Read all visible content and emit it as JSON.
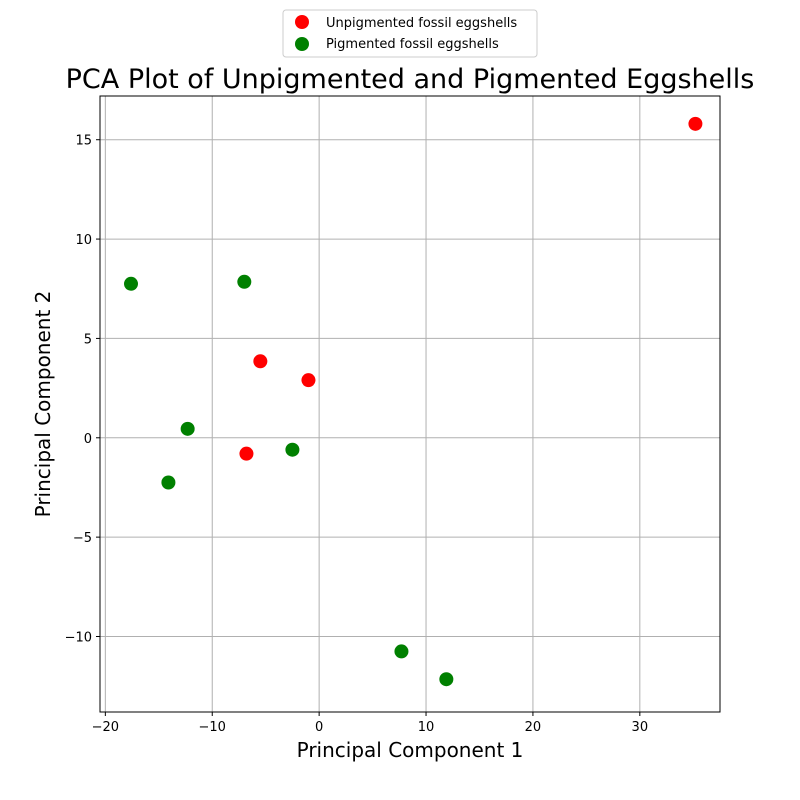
{
  "chart_data": {
    "type": "scatter",
    "title": "PCA Plot of Unpigmented and Pigmented Eggshells",
    "xlabel": "Principal Component 1",
    "ylabel": "Principal Component 2",
    "xlim": [
      -20.5,
      37.5
    ],
    "ylim": [
      -13.8,
      17.2
    ],
    "xticks": [
      -20,
      -10,
      0,
      10,
      20,
      30
    ],
    "yticks": [
      -10,
      -5,
      0,
      5,
      10,
      15
    ],
    "xtick_labels": [
      "−20",
      "−10",
      "0",
      "10",
      "20",
      "30"
    ],
    "ytick_labels": [
      "−10",
      "−5",
      "0",
      "5",
      "10",
      "15"
    ],
    "grid": true,
    "legend_position": "top-center",
    "series": [
      {
        "name": "Unpigmented fossil eggshells",
        "color": "#ff0000",
        "points": [
          {
            "x": 35.2,
            "y": 15.8
          },
          {
            "x": -5.5,
            "y": 3.85
          },
          {
            "x": -1.0,
            "y": 2.9
          },
          {
            "x": -6.8,
            "y": -0.8
          }
        ]
      },
      {
        "name": "Pigmented fossil eggshells",
        "color": "#008000",
        "points": [
          {
            "x": -17.6,
            "y": 7.75
          },
          {
            "x": -7.0,
            "y": 7.85
          },
          {
            "x": -12.3,
            "y": 0.45
          },
          {
            "x": -2.5,
            "y": -0.6
          },
          {
            "x": -14.1,
            "y": -2.25
          },
          {
            "x": 7.7,
            "y": -10.75
          },
          {
            "x": 11.9,
            "y": -12.15
          }
        ]
      }
    ]
  }
}
